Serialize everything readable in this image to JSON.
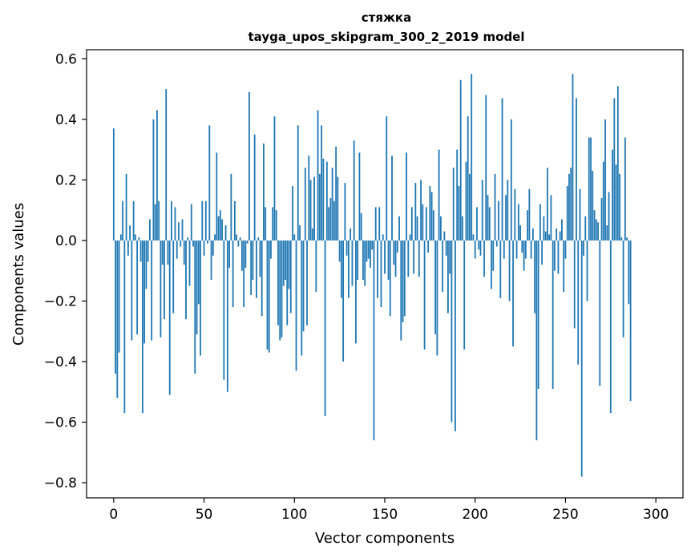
{
  "chart_data": {
    "type": "bar",
    "title": "стяжка",
    "subtitle": "tayga_upos_skipgram_300_2_2019 model",
    "xlabel": "Vector components",
    "ylabel": "Components values",
    "xlim": [
      -15,
      315
    ],
    "ylim": [
      -0.85,
      0.63
    ],
    "xticks": [
      0,
      50,
      100,
      150,
      200,
      250,
      300
    ],
    "yticks": [
      -0.8,
      -0.6,
      -0.4,
      -0.2,
      0.0,
      0.2,
      0.4,
      0.6
    ],
    "ytick_labels": [
      "−0.8",
      "−0.6",
      "−0.4",
      "−0.2",
      "0.0",
      "0.2",
      "0.4",
      "0.6"
    ],
    "bar_color": "#1f77b4",
    "grid": false,
    "values": [
      0.37,
      -0.44,
      -0.52,
      -0.37,
      0.02,
      0.13,
      -0.57,
      0.22,
      -0.05,
      0.05,
      -0.33,
      0.13,
      0.02,
      -0.31,
      0.01,
      -0.07,
      -0.57,
      -0.34,
      -0.16,
      -0.07,
      0.07,
      -0.33,
      0.4,
      0.12,
      0.43,
      0.13,
      -0.32,
      -0.08,
      -0.26,
      0.5,
      -0.08,
      -0.51,
      0.13,
      -0.24,
      0.11,
      -0.06,
      0.06,
      -0.02,
      0.07,
      -0.08,
      -0.26,
      0.01,
      -0.15,
      0.12,
      -0.02,
      -0.44,
      -0.31,
      -0.21,
      -0.38,
      0.13,
      -0.05,
      0.13,
      -0.01,
      0.38,
      -0.13,
      -0.05,
      0.02,
      0.29,
      0.08,
      0.1,
      0.07,
      -0.46,
      0.05,
      -0.5,
      -0.09,
      0.22,
      -0.22,
      0.13,
      0.02,
      -0.02,
      0.01,
      -0.1,
      -0.22,
      -0.09,
      -0.01,
      0.49,
      -0.18,
      -0.13,
      0.35,
      -0.19,
      0.01,
      -0.12,
      -0.25,
      0.32,
      0.11,
      -0.36,
      -0.37,
      -0.06,
      0.11,
      0.41,
      0.1,
      -0.28,
      -0.33,
      -0.32,
      -0.15,
      -0.13,
      -0.28,
      -0.16,
      -0.24,
      0.18,
      0.02,
      -0.43,
      0.38,
      0.05,
      -0.38,
      -0.3,
      0.24,
      -0.28,
      0.28,
      0.2,
      0.04,
      0.21,
      -0.17,
      0.43,
      0.22,
      0.38,
      0.27,
      -0.58,
      0.26,
      0.11,
      0.14,
      0.24,
      0.13,
      0.31,
      0.21,
      -0.07,
      -0.19,
      -0.4,
      0.19,
      -0.05,
      -0.19,
      0.04,
      -0.15,
      0.33,
      -0.34,
      -0.13,
      0.29,
      0.09,
      -0.13,
      -0.15,
      -0.07,
      -0.06,
      -0.09,
      -0.03,
      -0.66,
      0.11,
      -0.19,
      0.11,
      -0.22,
      0.02,
      -0.11,
      0.41,
      -0.13,
      -0.25,
      0.28,
      -0.08,
      -0.12,
      -0.04,
      0.08,
      -0.33,
      -0.27,
      -0.25,
      0.29,
      -0.12,
      0.02,
      0.11,
      -0.11,
      0.19,
      0.08,
      -0.12,
      0.2,
      0.12,
      -0.36,
      0.11,
      -0.04,
      0.18,
      0.16,
      0.1,
      -0.31,
      -0.38,
      0.3,
      0.08,
      -0.17,
      0.03,
      -0.05,
      -0.24,
      -0.11,
      -0.6,
      0.24,
      -0.63,
      0.3,
      0.18,
      0.53,
      0.08,
      -0.36,
      0.26,
      0.41,
      0.22,
      0.55,
      0.02,
      -0.06,
      0.11,
      -0.03,
      -0.05,
      0.2,
      -0.12,
      0.48,
      0.15,
      0.11,
      -0.16,
      -0.1,
      0.22,
      -0.02,
      0.13,
      -0.19,
      0.47,
      -0.06,
      0.15,
      0.2,
      -0.2,
      0.4,
      -0.35,
      0.17,
      -0.06,
      0.12,
      0.05,
      -0.04,
      -0.1,
      -0.06,
      0.1,
      0.17,
      -0.06,
      0.04,
      -0.24,
      -0.66,
      -0.49,
      0.12,
      -0.08,
      0.08,
      0.03,
      0.24,
      0.02,
      0.15,
      -0.49,
      -0.1,
      0.04,
      -0.11,
      0.03,
      0.07,
      -0.17,
      -0.06,
      0.18,
      0.22,
      0.24,
      0.55,
      -0.29,
      0.47,
      -0.41,
      0.17,
      -0.78,
      -0.05,
      0.08,
      -0.2,
      0.34,
      0.34,
      0.23,
      0.1,
      0.07,
      0.06,
      -0.48,
      0.14,
      0.26,
      0.4,
      0.05,
      0.16,
      -0.57,
      0.3,
      0.47,
      0.25,
      0.51,
      0.22,
      0.01,
      -0.32,
      0.34,
      0.01,
      -0.21,
      -0.53
    ]
  }
}
